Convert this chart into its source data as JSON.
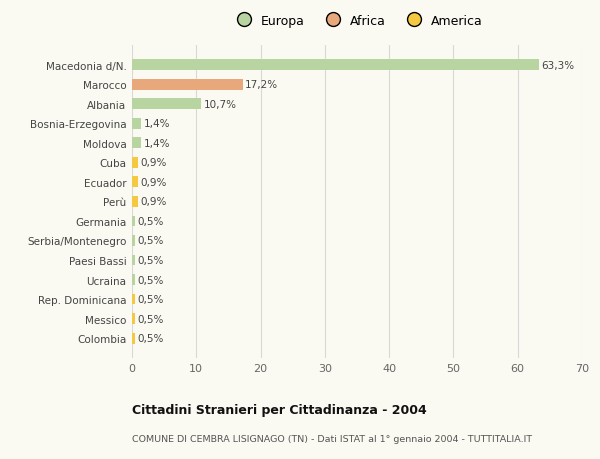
{
  "categories": [
    "Colombia",
    "Messico",
    "Rep. Dominicana",
    "Ucraina",
    "Paesi Bassi",
    "Serbia/Montenegro",
    "Germania",
    "Perù",
    "Ecuador",
    "Cuba",
    "Moldova",
    "Bosnia-Erzegovina",
    "Albania",
    "Marocco",
    "Macedonia d/N."
  ],
  "values": [
    0.5,
    0.5,
    0.5,
    0.5,
    0.5,
    0.5,
    0.5,
    0.9,
    0.9,
    0.9,
    1.4,
    1.4,
    10.7,
    17.2,
    63.3
  ],
  "colors": [
    "#f5c842",
    "#f5c842",
    "#f5c842",
    "#b8d4a0",
    "#b8d4a0",
    "#b8d4a0",
    "#b8d4a0",
    "#f5c842",
    "#f5c842",
    "#f5c842",
    "#b8d4a0",
    "#b8d4a0",
    "#b8d4a0",
    "#e8a87c",
    "#b8d4a0"
  ],
  "labels": [
    "0,5%",
    "0,5%",
    "0,5%",
    "0,5%",
    "0,5%",
    "0,5%",
    "0,5%",
    "0,9%",
    "0,9%",
    "0,9%",
    "1,4%",
    "1,4%",
    "10,7%",
    "17,2%",
    "63,3%"
  ],
  "xlim": [
    0,
    70
  ],
  "xticks": [
    0,
    10,
    20,
    30,
    40,
    50,
    60,
    70
  ],
  "legend_labels": [
    "Europa",
    "Africa",
    "America"
  ],
  "legend_colors": [
    "#b8d4a0",
    "#e8a87c",
    "#f5c842"
  ],
  "title": "Cittadini Stranieri per Cittadinanza - 2004",
  "subtitle": "COMUNE DI CEMBRA LISIGNAGO (TN) - Dati ISTAT al 1° gennaio 2004 - TUTTITALIA.IT",
  "bg_color": "#fafaf2",
  "plot_bg_color": "#fafaf2",
  "grid_color": "#d8d8d8"
}
